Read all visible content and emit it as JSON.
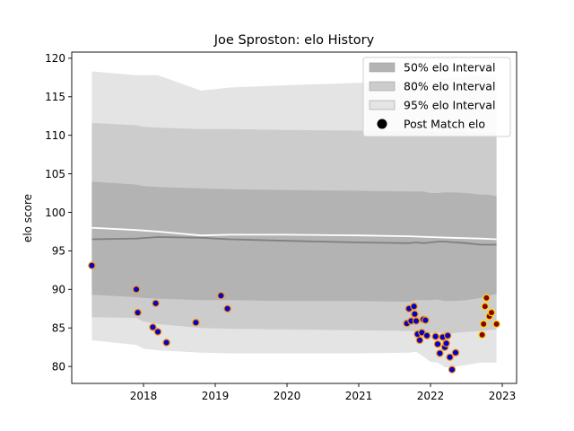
{
  "chart_data": {
    "type": "scatter",
    "title": "Joe Sproston: elo History",
    "xlabel": "",
    "ylabel": "elo score",
    "xlim": [
      2017.0,
      2023.2
    ],
    "ylim": [
      77.8,
      120.8
    ],
    "xticks": [
      2018,
      2019,
      2020,
      2021,
      2022,
      2023
    ],
    "xtick_labels": [
      "2018",
      "2019",
      "2020",
      "2021",
      "2022",
      "2023"
    ],
    "yticks": [
      80,
      85,
      90,
      95,
      100,
      105,
      110,
      115,
      120
    ],
    "ytick_labels": [
      "80",
      "85",
      "90",
      "95",
      "100",
      "105",
      "110",
      "115",
      "120"
    ],
    "grid": false,
    "legend": {
      "placement": "top-right",
      "entries": [
        {
          "label": "50% elo Interval",
          "color": "#b3b3b3"
        },
        {
          "label": "80% elo Interval",
          "color": "#cccccc"
        },
        {
          "label": "95% elo Interval",
          "color": "#e4e4e4"
        },
        {
          "label": "Post Match elo",
          "color": "#000000"
        }
      ]
    },
    "bands": {
      "x": [
        2017.28,
        2017.9,
        2018.0,
        2018.2,
        2018.8,
        2019.2,
        2020.0,
        2021.0,
        2021.7,
        2021.8,
        2021.9,
        2022.0,
        2022.1,
        2022.2,
        2022.3,
        2022.5,
        2022.7,
        2022.8,
        2022.92
      ],
      "p95_upper": [
        118.3,
        117.8,
        117.8,
        117.8,
        115.8,
        116.2,
        116.5,
        116.8,
        117.0,
        117.2,
        117.3,
        117.2,
        117.2,
        117.4,
        117.5,
        117.6,
        117.8,
        117.7,
        117.5
      ],
      "p80_upper": [
        111.6,
        111.3,
        111.1,
        111.0,
        110.8,
        110.8,
        110.7,
        110.6,
        110.5,
        110.6,
        110.6,
        110.4,
        110.4,
        110.5,
        110.5,
        110.4,
        110.3,
        110.4,
        110.3
      ],
      "p50_upper": [
        104.0,
        103.6,
        103.4,
        103.3,
        103.1,
        103.0,
        102.9,
        102.8,
        102.7,
        102.7,
        102.7,
        102.5,
        102.5,
        102.6,
        102.6,
        102.5,
        102.3,
        102.3,
        102.1
      ],
      "p50_lower": [
        89.3,
        89.0,
        88.9,
        88.8,
        88.6,
        88.6,
        88.5,
        88.5,
        88.4,
        88.6,
        88.6,
        88.6,
        88.7,
        88.5,
        88.5,
        88.6,
        88.9,
        89.2,
        89.4
      ],
      "p80_lower": [
        86.4,
        86.3,
        85.8,
        85.5,
        85.0,
        84.9,
        84.8,
        84.7,
        84.6,
        84.6,
        84.4,
        84.3,
        84.4,
        84.3,
        84.3,
        84.5,
        84.6,
        84.7,
        84.8
      ],
      "p95_lower": [
        83.4,
        82.8,
        82.3,
        82.1,
        81.8,
        81.7,
        81.7,
        81.7,
        81.8,
        81.9,
        81.3,
        80.6,
        80.5,
        79.9,
        79.9,
        80.2,
        80.5,
        80.5,
        80.5
      ]
    },
    "series": [
      {
        "name": "",
        "style": "line",
        "color": "#ffffff",
        "x": [
          2017.28,
          2017.9,
          2018.2,
          2018.8,
          2019.2,
          2020.0,
          2021.0,
          2021.7,
          2022.0,
          2022.3,
          2022.7,
          2022.92
        ],
        "y": [
          98.0,
          97.7,
          97.5,
          97.0,
          97.1,
          97.1,
          97.0,
          96.9,
          96.8,
          96.7,
          96.6,
          96.5
        ]
      },
      {
        "name": "",
        "style": "line",
        "color": "#808080",
        "x": [
          2017.28,
          2017.9,
          2018.2,
          2018.8,
          2019.2,
          2020.0,
          2021.0,
          2021.7,
          2021.8,
          2021.9,
          2022.0,
          2022.1,
          2022.2,
          2022.5,
          2022.7,
          2022.92
        ],
        "y": [
          96.5,
          96.6,
          96.8,
          96.7,
          96.5,
          96.3,
          96.1,
          96.0,
          96.1,
          96.0,
          96.1,
          96.2,
          96.2,
          96.0,
          95.8,
          95.8
        ]
      },
      {
        "name": "Post Match elo",
        "style": "points",
        "x": [
          2017.28,
          2017.9,
          2017.92,
          2018.13,
          2018.17,
          2018.2,
          2018.32,
          2018.73,
          2019.08,
          2019.17,
          2021.67,
          2021.7,
          2021.73,
          2021.77,
          2021.78,
          2021.8,
          2021.82,
          2021.85,
          2021.88,
          2021.9,
          2021.93,
          2021.95,
          2022.07,
          2022.1,
          2022.13,
          2022.17,
          2022.2,
          2022.22,
          2022.24,
          2022.27,
          2022.3,
          2022.35,
          2022.72,
          2022.74,
          2022.76,
          2022.78,
          2022.82,
          2022.85,
          2022.92
        ],
        "y": [
          93.1,
          90.0,
          87.0,
          85.1,
          88.2,
          84.5,
          83.1,
          85.7,
          89.2,
          87.5,
          85.6,
          87.5,
          85.9,
          87.8,
          86.8,
          85.9,
          84.2,
          83.4,
          84.4,
          86.1,
          86.0,
          84.0,
          83.9,
          82.9,
          81.7,
          83.8,
          82.5,
          83.0,
          84.0,
          81.2,
          79.6,
          81.8,
          84.1,
          85.5,
          87.8,
          88.9,
          86.5,
          87.0,
          85.5
        ],
        "fill_color": "#0000cc",
        "edge_colors": [
          "#ff8c00",
          "#ff8c00",
          "#ff8c00",
          "#ff8c00",
          "#ff8c00",
          "#ff8c00",
          "#ff8c00",
          "#ff8c00",
          "#ff8c00",
          "#ff8c00",
          "#ff8c00",
          "#ff8c00",
          "#ff8c00",
          "#ff8c00",
          "#ff8c00",
          "#ff8c00",
          "#ff8c00",
          "#ff8c00",
          "#ff8c00",
          "#ff8c00",
          "#ff8c00",
          "#ff8c00",
          "#ff8c00",
          "#ff8c00",
          "#ff8c00",
          "#ff8c00",
          "#ff8c00",
          "#ff8c00",
          "#ff8c00",
          "#ff8c00",
          "#ff8c00",
          "#ff8c00",
          "#ffd700",
          "#ffd700",
          "#ffd700",
          "#ffd700",
          "#ffd700",
          "#ffd700",
          "#ffd700"
        ],
        "fill_colors": [
          "#0000cc",
          "#0000cc",
          "#0000cc",
          "#0000cc",
          "#0000cc",
          "#0000cc",
          "#0000cc",
          "#0000cc",
          "#0000cc",
          "#0000cc",
          "#0000cc",
          "#0000cc",
          "#0000cc",
          "#0000cc",
          "#0000cc",
          "#0000cc",
          "#0000cc",
          "#0000cc",
          "#0000cc",
          "#0000cc",
          "#0000cc",
          "#0000cc",
          "#0000cc",
          "#0000cc",
          "#0000cc",
          "#0000cc",
          "#0000cc",
          "#0000cc",
          "#0000cc",
          "#0000cc",
          "#0000cc",
          "#0000cc",
          "#8b0000",
          "#8b0000",
          "#8b0000",
          "#8b0000",
          "#8b0000",
          "#8b0000",
          "#8b0000"
        ]
      }
    ]
  }
}
